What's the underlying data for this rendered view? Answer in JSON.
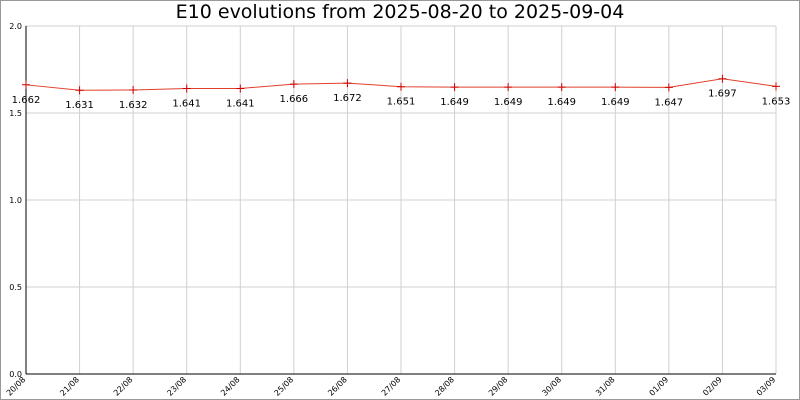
{
  "chart_data": {
    "type": "line",
    "title": "E10 evolutions from 2025-08-20 to 2025-09-04",
    "categories": [
      "20/08",
      "21/08",
      "22/08",
      "23/08",
      "24/08",
      "25/08",
      "26/08",
      "27/08",
      "28/08",
      "29/08",
      "30/08",
      "31/08",
      "01/09",
      "02/09",
      "03/09"
    ],
    "values": [
      1.662,
      1.631,
      1.632,
      1.641,
      1.641,
      1.666,
      1.672,
      1.651,
      1.649,
      1.649,
      1.649,
      1.649,
      1.647,
      1.697,
      1.653
    ],
    "color": "#e0402a",
    "marker_color": "#d00000",
    "ylim": [
      0,
      2
    ],
    "yticks": [
      {
        "value": 0,
        "label": "0.0"
      },
      {
        "value": 0.5,
        "label": "0.5"
      },
      {
        "value": 1,
        "label": "1.0"
      },
      {
        "value": 1.5,
        "label": "1.5"
      },
      {
        "value": 2,
        "label": "2.0"
      }
    ],
    "grid": true
  }
}
